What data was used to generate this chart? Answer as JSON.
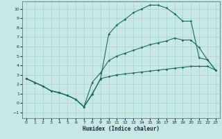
{
  "xlabel": "Humidex (Indice chaleur)",
  "background_color": "#c8e8e5",
  "grid_color": "#a8d0cd",
  "line_color": "#1a6b58",
  "xlim": [
    -0.5,
    23.5
  ],
  "ylim": [
    -1.6,
    10.8
  ],
  "xticks": [
    0,
    1,
    2,
    3,
    4,
    5,
    6,
    7,
    8,
    9,
    10,
    11,
    12,
    13,
    14,
    15,
    16,
    17,
    18,
    19,
    20,
    21,
    22,
    23
  ],
  "yticks": [
    -1,
    0,
    1,
    2,
    3,
    4,
    5,
    6,
    7,
    8,
    9,
    10
  ],
  "line1_x": [
    0,
    1,
    2,
    3,
    4,
    5,
    6,
    7,
    8,
    9,
    10,
    11,
    12,
    13,
    14,
    15,
    16,
    17,
    18,
    19,
    20,
    21,
    22,
    23
  ],
  "line1_y": [
    2.6,
    2.2,
    1.8,
    1.3,
    1.1,
    0.8,
    0.4,
    -0.4,
    1.0,
    2.5,
    7.3,
    8.3,
    8.9,
    9.6,
    10.0,
    10.4,
    10.4,
    10.1,
    9.5,
    8.7,
    8.7,
    4.8,
    4.6,
    3.5
  ],
  "line2_x": [
    0,
    1,
    2,
    3,
    4,
    5,
    6,
    7,
    8,
    9,
    10,
    11,
    12,
    13,
    14,
    15,
    16,
    17,
    18,
    19,
    20,
    21,
    22,
    23
  ],
  "line2_y": [
    2.6,
    2.2,
    1.8,
    1.3,
    1.1,
    0.8,
    0.4,
    -0.4,
    2.2,
    3.2,
    4.5,
    5.0,
    5.3,
    5.6,
    5.9,
    6.2,
    6.4,
    6.6,
    6.9,
    6.7,
    6.7,
    5.9,
    4.6,
    3.5
  ],
  "line3_x": [
    0,
    1,
    2,
    3,
    4,
    5,
    6,
    7,
    8,
    9,
    10,
    11,
    12,
    13,
    14,
    15,
    16,
    17,
    18,
    19,
    20,
    21,
    22,
    23
  ],
  "line3_y": [
    2.6,
    2.2,
    1.8,
    1.3,
    1.1,
    0.8,
    0.4,
    -0.4,
    0.9,
    2.6,
    2.8,
    3.0,
    3.1,
    3.2,
    3.3,
    3.4,
    3.5,
    3.6,
    3.7,
    3.8,
    3.9,
    3.9,
    3.9,
    3.5
  ]
}
